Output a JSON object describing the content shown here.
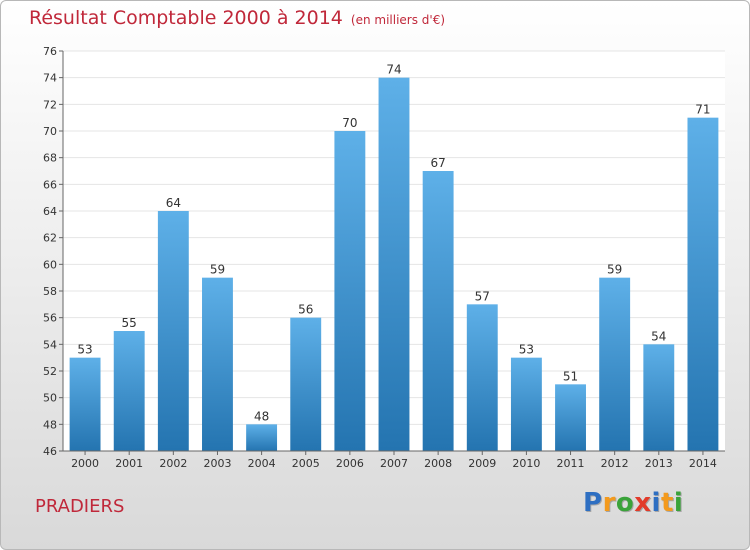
{
  "header": {
    "title": "Résultat Comptable 2000 à 2014",
    "unit": "(en milliers d'€)"
  },
  "footer": {
    "commune": "PRADIERS",
    "logo": [
      {
        "char": "P",
        "color": "#2e6fc2"
      },
      {
        "char": "r",
        "color": "#f39a1d"
      },
      {
        "char": "o",
        "color": "#3aa33a"
      },
      {
        "char": "x",
        "color": "#e23b2a"
      },
      {
        "char": "i",
        "color": "#2e6fc2"
      },
      {
        "char": "t",
        "color": "#f39a1d"
      },
      {
        "char": "i",
        "color": "#3aa33a"
      }
    ]
  },
  "colors": {
    "title": "#c0283a",
    "bar_light": "#5eb0e8",
    "bar_dark": "#2474b0"
  },
  "chart_data": {
    "type": "bar",
    "title": "Résultat Comptable 2000 à 2014",
    "xlabel": "",
    "ylabel": "",
    "categories": [
      "2000",
      "2001",
      "2002",
      "2003",
      "2004",
      "2005",
      "2006",
      "2007",
      "2008",
      "2009",
      "2010",
      "2011",
      "2012",
      "2013",
      "2014"
    ],
    "values": [
      53,
      55,
      64,
      59,
      48,
      56,
      70,
      74,
      67,
      57,
      53,
      51,
      59,
      54,
      71
    ],
    "ylim": [
      46,
      76
    ],
    "yticks": [
      46,
      48,
      50,
      52,
      54,
      56,
      58,
      60,
      62,
      64,
      66,
      68,
      70,
      72,
      74,
      76
    ],
    "grid": true
  }
}
